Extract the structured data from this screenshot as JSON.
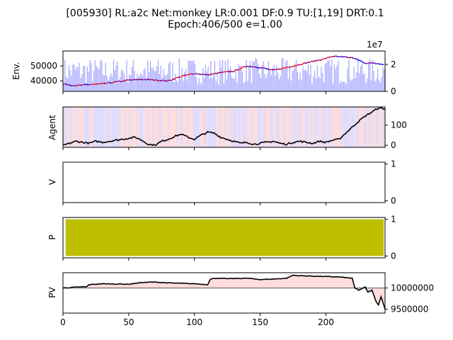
{
  "figure": {
    "title_line1": "[005930] RL:a2c Net:monkey LR:0.001 DF:0.9 TU:[1,19] DRT:0.1",
    "title_line2": "Epoch:406/500 e=1.00"
  },
  "colors": {
    "price_up": "#ff0000",
    "price_down": "#0000ff",
    "volume": "#aaaaff",
    "action_buy_bg": "#ffd6d6",
    "action_sell_bg": "#d6d6ff",
    "agent_line": "#000000",
    "policy_fill": "#bfbf00",
    "pv_fill": "#ffdddd",
    "pv_baseline": "#808080"
  },
  "chart_data": [
    {
      "id": "env",
      "type": "line",
      "ylabel": "Env.",
      "x_range": [
        0,
        245
      ],
      "ylim_left": [
        33000,
        60000
      ],
      "yticks_left": [
        "40000",
        "50000"
      ],
      "ylim_right": [
        0,
        30000000
      ],
      "yticks_right": [
        "0",
        "2"
      ],
      "offset_text": "1e7",
      "price_anchors": {
        "x": [
          0,
          10,
          20,
          30,
          40,
          50,
          60,
          70,
          80,
          90,
          100,
          110,
          120,
          130,
          140,
          150,
          160,
          170,
          180,
          190,
          200,
          205,
          210,
          220,
          230,
          240,
          245
        ],
        "close": [
          38000,
          36800,
          37500,
          38000,
          39200,
          40500,
          41000,
          40600,
          40000,
          43000,
          45000,
          44000,
          45500,
          46500,
          50000,
          49000,
          47000,
          49000,
          51000,
          53000,
          55000,
          56500,
          56000,
          55500,
          52000,
          51500,
          50500
        ]
      },
      "volume_level": 15000000
    },
    {
      "id": "agent",
      "type": "line",
      "ylabel": "Agent",
      "x_range": [
        0,
        245
      ],
      "ylim": [
        -10,
        190
      ],
      "yticks_right": [
        "0",
        "100"
      ],
      "anchors": {
        "x": [
          0,
          5,
          10,
          15,
          20,
          25,
          30,
          35,
          40,
          45,
          50,
          55,
          60,
          65,
          70,
          75,
          80,
          85,
          90,
          95,
          100,
          105,
          110,
          115,
          120,
          125,
          130,
          135,
          140,
          145,
          150,
          155,
          160,
          165,
          170,
          175,
          180,
          185,
          190,
          195,
          200,
          205,
          210,
          215,
          220,
          225,
          230,
          235,
          240,
          245
        ],
        "y": [
          0,
          10,
          20,
          15,
          10,
          20,
          15,
          20,
          25,
          30,
          35,
          40,
          25,
          5,
          0,
          20,
          30,
          45,
          55,
          40,
          30,
          50,
          65,
          60,
          40,
          30,
          20,
          10,
          15,
          5,
          10,
          15,
          20,
          10,
          5,
          15,
          20,
          15,
          10,
          20,
          15,
          25,
          30,
          60,
          90,
          120,
          145,
          165,
          185,
          180
        ]
      }
    },
    {
      "id": "value",
      "type": "line",
      "ylabel": "V",
      "x_range": [
        0,
        245
      ],
      "ylim": [
        -0.05,
        1.05
      ],
      "yticks_right": [
        "0",
        "1"
      ]
    },
    {
      "id": "policy",
      "type": "area",
      "ylabel": "P",
      "x_range": [
        0,
        245
      ],
      "fill_from": 2,
      "fill_to": 244,
      "ylim": [
        -0.05,
        1.05
      ],
      "yticks_right": [
        "0",
        "1"
      ]
    },
    {
      "id": "pv",
      "type": "area",
      "ylabel": "PV",
      "x_range": [
        0,
        245
      ],
      "ylim": [
        9410000,
        10360000
      ],
      "yticks_right": [
        "9500000",
        "10000000"
      ],
      "baseline": 10000000,
      "xticks": [
        "0",
        "50",
        "100",
        "150",
        "200"
      ],
      "anchors": {
        "x": [
          0,
          10,
          18,
          20,
          30,
          50,
          60,
          70,
          80,
          100,
          110,
          112,
          115,
          125,
          140,
          150,
          160,
          170,
          175,
          180,
          190,
          200,
          210,
          220,
          222,
          225,
          230,
          232,
          235,
          238,
          240,
          242,
          245
        ],
        "y": [
          10000000,
          10020000,
          10030000,
          10080000,
          10100000,
          10090000,
          10130000,
          10140000,
          10120000,
          10100000,
          10080000,
          10200000,
          10230000,
          10220000,
          10230000,
          10200000,
          10210000,
          10230000,
          10300000,
          10290000,
          10280000,
          10270000,
          10260000,
          10230000,
          10000000,
          9950000,
          10020000,
          9900000,
          9950000,
          9700000,
          9600000,
          9800000,
          9500000
        ]
      }
    }
  ]
}
